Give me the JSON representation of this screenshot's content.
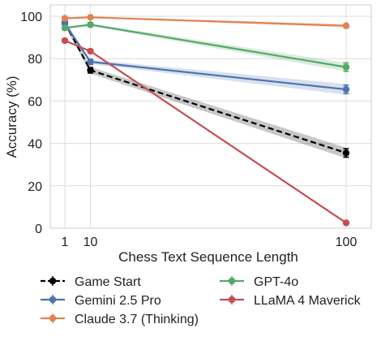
{
  "chart_data": {
    "type": "line",
    "xlabel": "Chess Text Sequence Length",
    "ylabel": "Accuracy (%)",
    "xlim": [
      0,
      100
    ],
    "ylim": [
      0,
      100
    ],
    "x_ticks": [
      1,
      10,
      100
    ],
    "y_ticks": [
      0,
      20,
      40,
      60,
      80,
      100
    ],
    "grid": true,
    "legend_position": "below",
    "series": [
      {
        "name": "Game Start",
        "color": "#000000",
        "dashed": true,
        "x": [
          1,
          10,
          100
        ],
        "y": [
          97,
          74.5,
          35.5
        ],
        "err": [
          1.2,
          1.3,
          2.0
        ],
        "band": [
          1.5,
          1.5,
          2.5
        ]
      },
      {
        "name": "Gemini 2.5 Pro",
        "color": "#4c72b0",
        "dashed": false,
        "x": [
          1,
          10,
          100
        ],
        "y": [
          96.5,
          78.5,
          65.5
        ],
        "err": [
          1.2,
          1.2,
          2.0
        ],
        "band": [
          1.0,
          1.0,
          2.5
        ]
      },
      {
        "name": "Claude 3.7 (Thinking)",
        "color": "#dd8452",
        "dashed": false,
        "x": [
          1,
          10,
          100
        ],
        "y": [
          99,
          99.5,
          95.5
        ],
        "err": [
          0.5,
          0.5,
          0.8
        ],
        "band": [
          0.4,
          0.4,
          0.8
        ]
      },
      {
        "name": "GPT-4o",
        "color": "#55a868",
        "dashed": false,
        "x": [
          1,
          10,
          100
        ],
        "y": [
          94.5,
          96,
          76
        ],
        "err": [
          1.0,
          1.0,
          2.0
        ],
        "band": [
          0.6,
          0.6,
          2.0
        ]
      },
      {
        "name": "LLaMA 4 Maverick",
        "color": "#c44e52",
        "dashed": false,
        "x": [
          1,
          10,
          100
        ],
        "y": [
          88.5,
          83.5,
          2.5
        ],
        "err": [
          0.8,
          0.8,
          0.6
        ],
        "band": [
          0.3,
          0.3,
          0.5
        ]
      }
    ]
  }
}
